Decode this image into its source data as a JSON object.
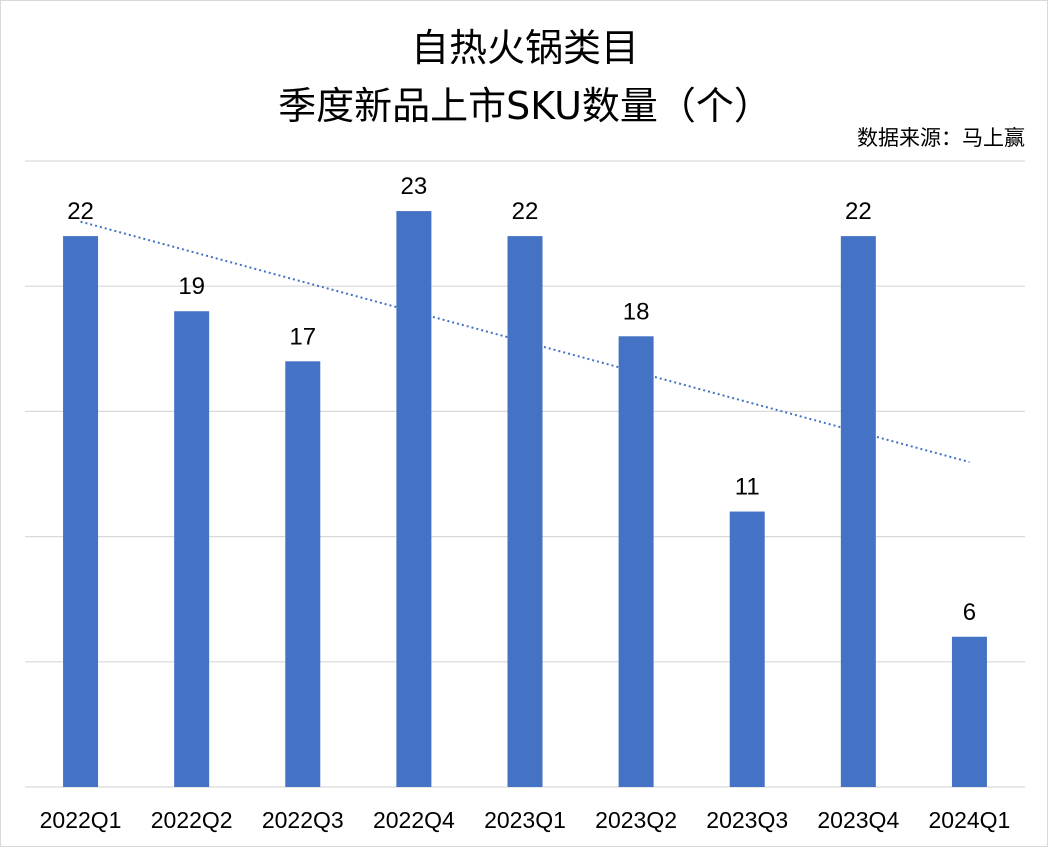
{
  "chart_data": {
    "type": "bar",
    "title_line1": "自热火锅类目",
    "title_line2": "季度新品上市SKU数量（个）",
    "source": "数据来源：马上赢",
    "categories": [
      "2022Q1",
      "2022Q2",
      "2022Q3",
      "2022Q4",
      "2023Q1",
      "2023Q2",
      "2023Q3",
      "2023Q4",
      "2024Q1"
    ],
    "series": [
      {
        "values": [
          22,
          19,
          17,
          23,
          22,
          18,
          11,
          22,
          6
        ]
      }
    ],
    "ylim": [
      0,
      25
    ],
    "gridlines": true,
    "y_axis_labels": false,
    "trendline": {
      "type": "linear",
      "style": "dotted"
    },
    "colors": {
      "bar": "#4472C4",
      "trendline": "#4472C4",
      "gridline": "#d9d9d9"
    }
  }
}
